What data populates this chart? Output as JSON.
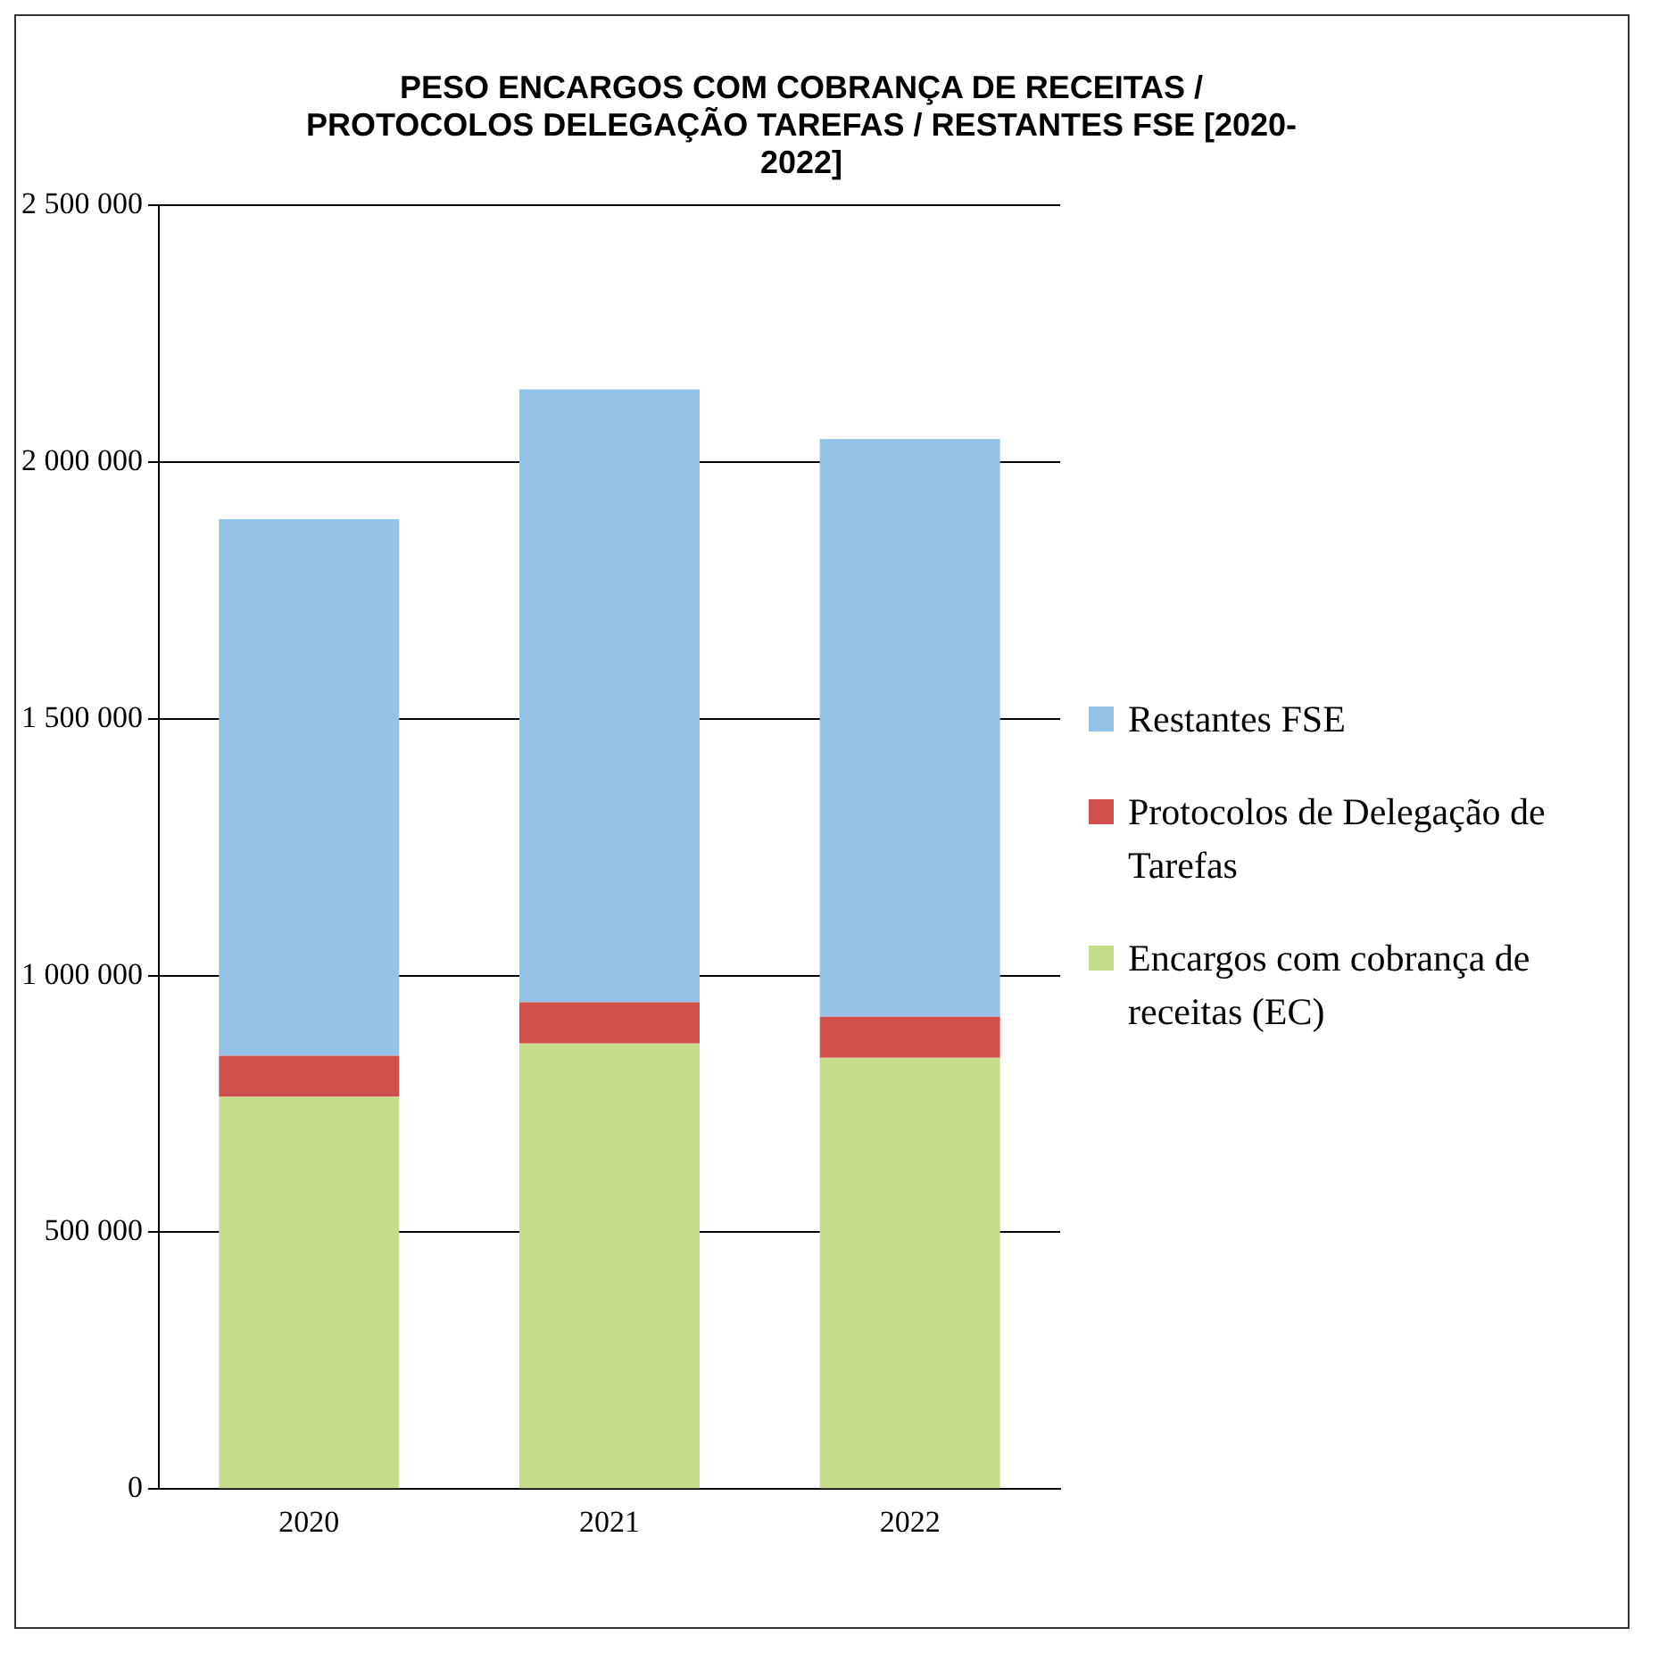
{
  "chart_data": {
    "type": "bar",
    "title": "PESO ENCARGOS COM COBRANÇA DE RECEITAS / PROTOCOLOS DELEGAÇÃO TAREFAS / RESTANTES FSE [2020-2022]",
    "categories": [
      "2020",
      "2021",
      "2022"
    ],
    "stacked": true,
    "legend": "right",
    "grid": "y",
    "ylim": [
      0,
      2500000
    ],
    "yticks": [
      {
        "value": 0,
        "label": "0"
      },
      {
        "value": 500000,
        "label": "500 000"
      },
      {
        "value": 1000000,
        "label": "1 000 000"
      },
      {
        "value": 1500000,
        "label": "1 500 000"
      },
      {
        "value": 2000000,
        "label": "2 000 000"
      },
      {
        "value": 2500000,
        "label": "2 500 000"
      }
    ],
    "series": [
      {
        "name": "Encargos com cobrança de receitas (EC)",
        "color": "#c6dd8c",
        "values": [
          764000,
          868000,
          840000
        ]
      },
      {
        "name": "Protocolos de Delegação de Tarefas",
        "color": "#d2504c",
        "values": [
          80000,
          80000,
          80000
        ]
      },
      {
        "name": "Restantes FSE",
        "color": "#92c3e6",
        "values": [
          1045000,
          1194000,
          1125000
        ]
      }
    ]
  }
}
